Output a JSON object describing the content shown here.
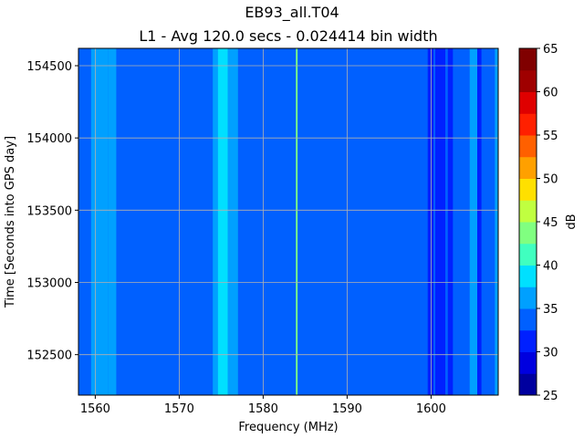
{
  "chart_data": {
    "type": "heatmap",
    "title": "EB93_all.T04",
    "subtitle": "L1 - Avg 120.0 secs - 0.024414 bin width",
    "xlabel": "Frequency (MHz)",
    "ylabel": "Time [Seconds into GPS day]",
    "xlim": [
      1558,
      1608
    ],
    "ylim": [
      152220,
      154620
    ],
    "x_ticks": [
      "1560",
      "1570",
      "1580",
      "1590",
      "1600"
    ],
    "x_tick_values": [
      1560,
      1570,
      1580,
      1590,
      1600
    ],
    "y_ticks": [
      "152500",
      "153000",
      "153500",
      "154000",
      "154500"
    ],
    "y_tick_values": [
      152500,
      153000,
      153500,
      154000,
      154500
    ],
    "grid": true,
    "background_level_db": 34,
    "bands": [
      {
        "from": 1558.0,
        "to": 1559.0,
        "db": 33
      },
      {
        "from": 1559.5,
        "to": 1560.0,
        "db": 37
      },
      {
        "from": 1560.0,
        "to": 1561.5,
        "db": 36
      },
      {
        "from": 1561.5,
        "to": 1562.5,
        "db": 36
      },
      {
        "from": 1574.0,
        "to": 1574.6,
        "db": 36
      },
      {
        "from": 1574.6,
        "to": 1575.8,
        "db": 39
      },
      {
        "from": 1575.8,
        "to": 1577.0,
        "db": 36
      },
      {
        "from": 1583.9,
        "to": 1584.1,
        "db": 43
      },
      {
        "from": 1599.6,
        "to": 1600.3,
        "db": 31
      },
      {
        "from": 1600.5,
        "to": 1601.7,
        "db": 30
      },
      {
        "from": 1602.0,
        "to": 1602.6,
        "db": 31
      },
      {
        "from": 1604.6,
        "to": 1605.5,
        "db": 36
      },
      {
        "from": 1605.5,
        "to": 1606.0,
        "db": 31
      },
      {
        "from": 1607.6,
        "to": 1608.0,
        "db": 37
      }
    ],
    "colorbar": {
      "label": "dB",
      "ticks": [
        "25",
        "30",
        "35",
        "40",
        "45",
        "50",
        "55",
        "60",
        "65"
      ],
      "range": [
        25,
        65
      ],
      "step": 2.5,
      "colors": [
        "#00009f",
        "#0000df",
        "#0020ff",
        "#0060ff",
        "#00a0ff",
        "#00e0ff",
        "#40ffbf",
        "#80ff80",
        "#c0ff40",
        "#ffe000",
        "#ffa000",
        "#ff6000",
        "#ff2000",
        "#df0000",
        "#9f0000",
        "#800000"
      ]
    }
  }
}
